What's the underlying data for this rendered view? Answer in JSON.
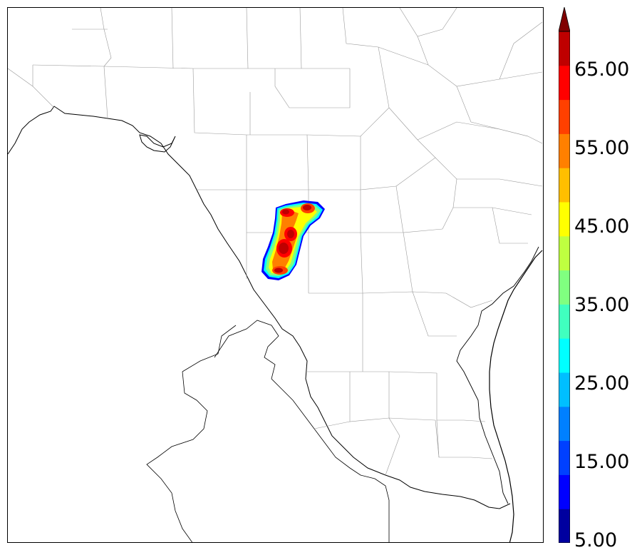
{
  "colorbar": {
    "tick_labels": [
      "5.00",
      "15.00",
      "25.00",
      "35.00",
      "45.00",
      "55.00",
      "65.00"
    ],
    "extend": "max",
    "colors": [
      "#00009f",
      "#0000ff",
      "#0040ff",
      "#0080ff",
      "#00bfff",
      "#00ffff",
      "#40ffbf",
      "#80ff80",
      "#bfff40",
      "#ffff00",
      "#ffbf00",
      "#ff8000",
      "#ff4000",
      "#ff0000",
      "#bf0000"
    ],
    "extend_color": "#800000"
  },
  "map": {
    "background": "#ffffff",
    "coast_color": "#000000",
    "county_color": "#999999",
    "feature": "precipitation-cluster"
  }
}
